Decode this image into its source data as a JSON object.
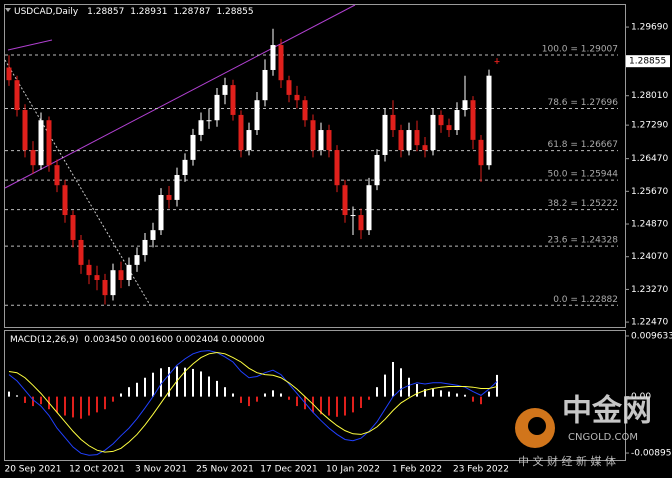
{
  "chart_data": [
    {
      "type": "candlestick",
      "title": "USDCAD,Daily",
      "categories": [
        null,
        null,
        null,
        "20 Sep 2021",
        null,
        null,
        null,
        null,
        null,
        null,
        null,
        "12 Oct 2021",
        null,
        null,
        null,
        null,
        null,
        null,
        null,
        "3 Nov 2021",
        null,
        null,
        null,
        null,
        null,
        null,
        null,
        "25 Nov 2021",
        null,
        null,
        null,
        null,
        null,
        null,
        null,
        "17 Dec 2021",
        null,
        null,
        null,
        null,
        null,
        null,
        null,
        "10 Jan 2022",
        null,
        null,
        null,
        null,
        null,
        null,
        null,
        "1 Feb 2022",
        null,
        null,
        null,
        null,
        null,
        null,
        null,
        "23 Feb 2022",
        null,
        null
      ],
      "open": [
        1.287,
        1.2839,
        1.2766,
        1.2668,
        1.2631,
        1.2741,
        1.2631,
        1.2582,
        1.2509,
        1.2448,
        1.2387,
        1.2362,
        1.235,
        1.2313,
        1.2374,
        1.235,
        1.2387,
        1.2411,
        1.2448,
        1.2472,
        1.2558,
        1.2546,
        1.2607,
        1.2644,
        1.2705,
        1.2741,
        1.2741,
        1.2803,
        1.2827,
        1.2754,
        1.2668,
        1.2717,
        1.279,
        1.2864,
        1.2925,
        1.2839,
        1.2803,
        1.279,
        1.2741,
        1.2668,
        1.2717,
        1.2668,
        1.2582,
        1.2509,
        1.2509,
        1.2472,
        1.2582,
        1.2656,
        1.2754,
        1.2717,
        1.2668,
        1.2717,
        1.268,
        1.2668,
        1.2754,
        1.2729,
        1.2717,
        1.2766,
        1.279,
        1.2693,
        1.2631,
        1.28857
      ],
      "high": [
        1.29,
        1.285,
        1.278,
        1.269,
        1.276,
        1.275,
        1.2645,
        1.2595,
        1.252,
        1.246,
        1.24,
        1.2385,
        1.2365,
        1.239,
        1.2395,
        1.2405,
        1.243,
        1.2465,
        1.249,
        1.2575,
        1.258,
        1.2625,
        1.266,
        1.272,
        1.276,
        1.277,
        1.282,
        1.2845,
        1.284,
        1.2765,
        1.2735,
        1.281,
        1.289,
        1.2965,
        1.294,
        1.285,
        1.2825,
        1.28,
        1.2755,
        1.2735,
        1.273,
        1.268,
        1.2595,
        1.253,
        1.2525,
        1.26,
        1.267,
        1.277,
        1.279,
        1.273,
        1.2735,
        1.274,
        1.27,
        1.277,
        1.2765,
        1.2745,
        1.2785,
        1.285,
        1.28,
        1.2705,
        1.2865,
        1.28931
      ],
      "low": [
        1.2825,
        1.275,
        1.265,
        1.261,
        1.262,
        1.2615,
        1.2565,
        1.249,
        1.243,
        1.2365,
        1.234,
        1.2325,
        1.229,
        1.23,
        1.233,
        1.2335,
        1.237,
        1.2395,
        1.243,
        1.246,
        1.2525,
        1.253,
        1.259,
        1.263,
        1.269,
        1.272,
        1.2725,
        1.278,
        1.274,
        1.265,
        1.2655,
        1.2705,
        1.2775,
        1.285,
        1.282,
        1.2785,
        1.277,
        1.2725,
        1.265,
        1.2655,
        1.265,
        1.2565,
        1.249,
        1.246,
        1.245,
        1.246,
        1.257,
        1.264,
        1.27,
        1.265,
        1.2655,
        1.2665,
        1.265,
        1.2655,
        1.271,
        1.27,
        1.2705,
        1.275,
        1.267,
        1.259,
        1.262,
        1.28787
      ],
      "close": [
        1.2839,
        1.2766,
        1.2668,
        1.2631,
        1.2741,
        1.2631,
        1.2582,
        1.2509,
        1.2448,
        1.2387,
        1.2362,
        1.235,
        1.2313,
        1.2374,
        1.235,
        1.2387,
        1.2411,
        1.2448,
        1.2472,
        1.2558,
        1.2546,
        1.2607,
        1.2644,
        1.2705,
        1.2741,
        1.2741,
        1.2803,
        1.2827,
        1.2754,
        1.2668,
        1.2717,
        1.279,
        1.2864,
        1.2925,
        1.2839,
        1.2803,
        1.279,
        1.2741,
        1.2668,
        1.2717,
        1.2668,
        1.2582,
        1.2509,
        1.2509,
        1.2472,
        1.2582,
        1.2656,
        1.2754,
        1.2717,
        1.2668,
        1.2717,
        1.268,
        1.2668,
        1.2754,
        1.2729,
        1.2717,
        1.2766,
        1.279,
        1.2693,
        1.2631,
        1.285,
        1.28855
      ],
      "up_color": "#ffffff",
      "down_color": "#e0201c",
      "ylim": [
        1.2235,
        1.3023
      ],
      "yticks": [
        {
          "value": 1.2969,
          "label": "1.29690"
        },
        {
          "value": 1.2801,
          "label": "1.28010"
        },
        {
          "value": 1.2729,
          "label": "1.27290"
        },
        {
          "value": 1.2647,
          "label": "1.26470"
        },
        {
          "value": 1.2567,
          "label": "1.25670"
        },
        {
          "value": 1.2487,
          "label": "1.24870"
        },
        {
          "value": 1.2407,
          "label": "1.24070"
        },
        {
          "value": 1.2327,
          "label": "1.23270"
        },
        {
          "value": 1.2247,
          "label": "1.22470"
        }
      ],
      "current_price": 1.28855,
      "fib_levels": [
        {
          "label": "100.0 = 1.29007",
          "value": 1.29007
        },
        {
          "label": "78.6 = 1.27696",
          "value": 1.27696
        },
        {
          "label": "61.8 = 1.26667",
          "value": 1.26667
        },
        {
          "label": "50.0 = 1.25944",
          "value": 1.25944
        },
        {
          "label": "38.2 = 1.25222",
          "value": 1.25222
        },
        {
          "label": "23.6 = 1.24328",
          "value": 1.24328
        },
        {
          "label": "0.0 = 1.22882",
          "value": 1.22882
        }
      ]
    },
    {
      "type": "macd",
      "title": "MACD(12,26,9)",
      "header_values": "0.003450 0.001600 0.002404 0.000000",
      "values": [
        0.0008,
        0.0002,
        -0.001,
        -0.0015,
        -0.0012,
        -0.002,
        -0.0025,
        -0.003,
        -0.0033,
        -0.0035,
        -0.003,
        -0.0025,
        -0.002,
        -0.0008,
        0.0005,
        0.0015,
        0.0022,
        0.003,
        0.0038,
        0.0045,
        0.0047,
        0.0048,
        0.0046,
        0.0044,
        0.004,
        0.0032,
        0.0025,
        0.0015,
        0.0005,
        -0.001,
        -0.0015,
        -0.0008,
        0.0005,
        0.001,
        0.0005,
        -0.0005,
        -0.0015,
        -0.002,
        -0.0025,
        -0.0028,
        -0.003,
        -0.0032,
        -0.003,
        -0.0025,
        -0.0018,
        -0.0005,
        0.0015,
        0.0035,
        0.0055,
        0.0045,
        0.003,
        0.002,
        0.0012,
        0.0012,
        0.001,
        0.0008,
        0.0005,
        0.0003,
        -0.0008,
        -0.0012,
        0.0008,
        0.00345
      ],
      "pos_color": "#ffffff",
      "neg_color": "#e0201c",
      "series": [
        {
          "color": "#2040ff",
          "values": [
            0.0035,
            0.0025,
            0.001,
            -0.0005,
            -0.0015,
            -0.003,
            -0.005,
            -0.0065,
            -0.008,
            -0.009,
            -0.0093,
            -0.0092,
            -0.0085,
            -0.0075,
            -0.0062,
            -0.005,
            -0.0035,
            -0.0018,
            0.0,
            0.002,
            0.0035,
            0.005,
            0.006,
            0.0068,
            0.0072,
            0.0073,
            0.007,
            0.0063,
            0.0055,
            0.004,
            0.003,
            0.0032,
            0.0038,
            0.0042,
            0.0035,
            0.002,
            0.0005,
            -0.001,
            -0.0025,
            -0.0038,
            -0.005,
            -0.006,
            -0.0068,
            -0.007,
            -0.0066,
            -0.0055,
            -0.004,
            -0.002,
            0.0,
            0.0012,
            0.0018,
            0.0022,
            0.002,
            0.0022,
            0.0022,
            0.002,
            0.0018,
            0.0015,
            0.0008,
            0.0002,
            0.0012,
            0.0024
          ]
        },
        {
          "color": "#ffff40",
          "values": [
            0.004,
            0.0038,
            0.003,
            0.0018,
            0.0005,
            -0.001,
            -0.0025,
            -0.004,
            -0.0055,
            -0.0068,
            -0.0078,
            -0.0085,
            -0.0088,
            -0.0087,
            -0.0082,
            -0.0072,
            -0.006,
            -0.0045,
            -0.0028,
            -0.001,
            0.0008,
            0.0025,
            0.004,
            0.0052,
            0.0062,
            0.0068,
            0.007,
            0.0068,
            0.0062,
            0.0055,
            0.0045,
            0.0038,
            0.0035,
            0.0034,
            0.003,
            0.0022,
            0.0012,
            0.0,
            -0.0012,
            -0.0025,
            -0.0036,
            -0.0046,
            -0.0054,
            -0.0059,
            -0.006,
            -0.0056,
            -0.0048,
            -0.0036,
            -0.0022,
            -0.001,
            -0.0002,
            0.0005,
            0.001,
            0.0013,
            0.0015,
            0.0016,
            0.0016,
            0.0016,
            0.0015,
            0.0013,
            0.0013,
            0.0016
          ]
        }
      ],
      "ylim": [
        -0.01006,
        0.01058
      ],
      "yticks": [
        0.009633,
        {
          "value": 0,
          "label": "0.00"
        },
        -0.008955
      ]
    }
  ],
  "watermark": {
    "brand": "中金网",
    "site": "CNGOLD.COM",
    "slogan": "中 文 财 经 新 媒 体"
  }
}
